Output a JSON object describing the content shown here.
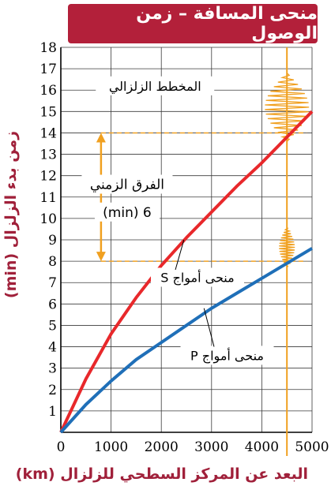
{
  "chart_data": {
    "type": "line",
    "title": "منحى المسافة – زمن الوصول",
    "xlabel": "البعد عن المركز السطحي للزلزال (km)",
    "ylabel": "زمن بدء الزلزال (min)",
    "xlim": [
      0,
      5000
    ],
    "ylim": [
      0,
      18
    ],
    "x_ticks": [
      "0",
      "1000",
      "2000",
      "3000",
      "4000",
      "5000"
    ],
    "y_ticks": [
      "1",
      "2",
      "3",
      "4",
      "5",
      "6",
      "7",
      "8",
      "9",
      "10",
      "11",
      "12",
      "13",
      "14",
      "15",
      "16",
      "17",
      "18"
    ],
    "grid": true,
    "series": [
      {
        "name": "منحى أمواج S",
        "color": "#e8282b",
        "x": [
          0,
          500,
          1000,
          1500,
          2000,
          2500,
          3000,
          3500,
          4000,
          4500,
          5000
        ],
        "y": [
          0,
          2.5,
          4.6,
          6.3,
          7.8,
          9.1,
          10.3,
          11.5,
          12.6,
          13.8,
          15.0
        ]
      },
      {
        "name": "منحى أمواج P",
        "color": "#1f6fb8",
        "x": [
          0,
          500,
          1000,
          1500,
          2000,
          2500,
          3000,
          3500,
          4000,
          4500,
          5000
        ],
        "y": [
          0,
          1.3,
          2.4,
          3.4,
          4.2,
          5.0,
          5.8,
          6.5,
          7.2,
          7.9,
          8.6
        ]
      }
    ],
    "annotations": {
      "seismogram": "المخطط الزلزالي",
      "time_diff_line1": "الفرق الزمني",
      "time_diff_line2": "6 (min)",
      "s_label": "منحى أمواج S",
      "p_label": "منحى أمواج P"
    },
    "station_distance": 4500,
    "p_arrival": 8,
    "s_arrival": 14,
    "accent_color": "#b3203a",
    "marker_color": "#f0a020"
  }
}
